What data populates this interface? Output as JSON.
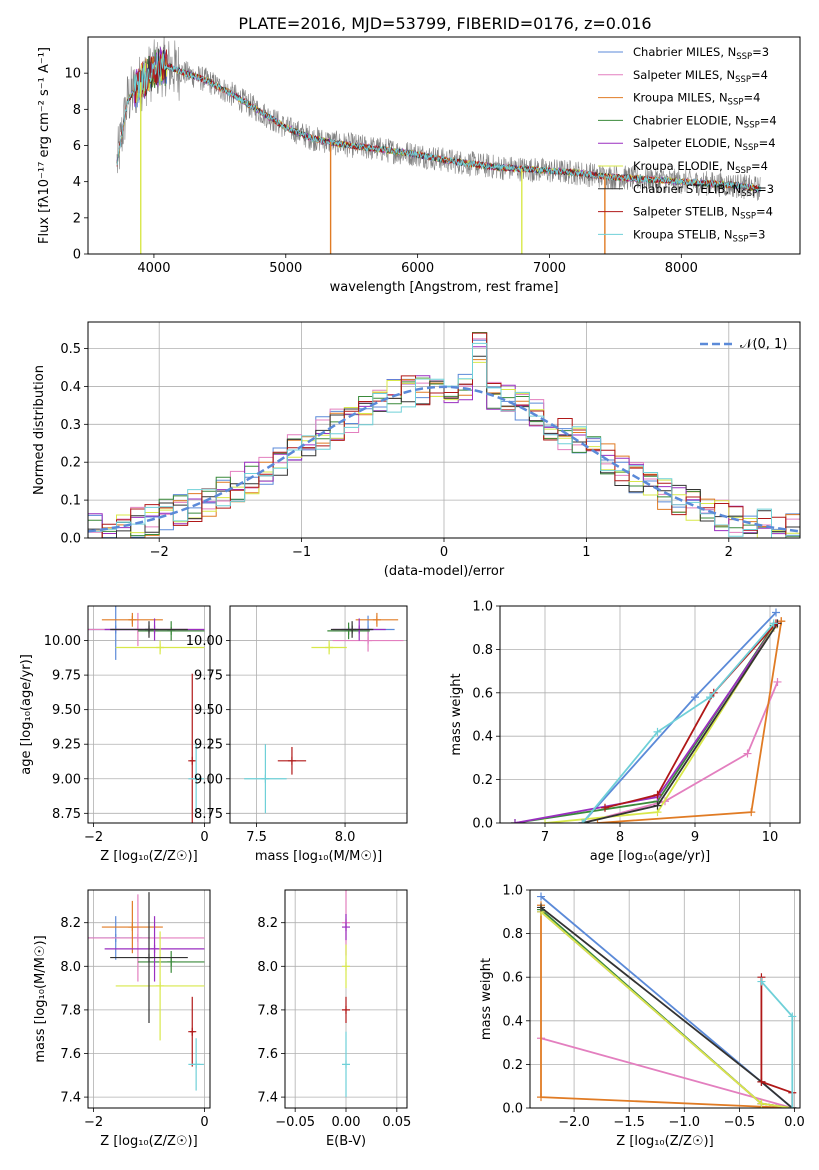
{
  "figure": {
    "title": "PLATE=2016, MJD=53799, FIBERID=0176, z=0.016"
  },
  "colors": {
    "Chabrier MILES": "#5b8ad8",
    "Salpeter MILES": "#e37fbf",
    "Kroupa MILES": "#e07b24",
    "Chabrier ELODIE": "#3a8a3a",
    "Salpeter ELODIE": "#9a2fc0",
    "Kroupa ELODIE": "#d8e84a",
    "Chabrier STELIB": "#333333",
    "Salpeter STELIB": "#b01818",
    "Kroupa STELIB": "#6fd0d8",
    "data": "#808080"
  },
  "chart_data": [
    {
      "id": "spectrum",
      "type": "line",
      "title": "PLATE=2016, MJD=53799, FIBERID=0176, z=0.016",
      "xlabel": "wavelength [Angstrom, rest frame]",
      "ylabel": "Flux [fλ10⁻¹⁷ erg cm⁻² s⁻¹ A⁻¹]",
      "xlim": [
        3500,
        8900
      ],
      "ylim": [
        0,
        12
      ],
      "xticks": [
        4000,
        5000,
        6000,
        7000,
        8000
      ],
      "yticks": [
        0,
        2,
        4,
        6,
        8,
        10
      ],
      "legend_position": "top-right",
      "legend": [
        {
          "name": "Chabrier MILES",
          "nssp": "3"
        },
        {
          "name": "Salpeter MILES",
          "nssp": "4"
        },
        {
          "name": "Kroupa MILES",
          "nssp": "4"
        },
        {
          "name": "Chabrier ELODIE",
          "nssp": "4"
        },
        {
          "name": "Salpeter ELODIE",
          "nssp": "4"
        },
        {
          "name": "Kroupa ELODIE",
          "nssp": "4"
        },
        {
          "name": "Chabrier STELIB",
          "nssp": "3"
        },
        {
          "name": "Salpeter STELIB",
          "nssp": "4"
        },
        {
          "name": "Kroupa STELIB",
          "nssp": "3"
        }
      ],
      "continuum": {
        "x": [
          3720,
          3800,
          3900,
          4000,
          4100,
          4200,
          4400,
          4600,
          4800,
          5000,
          5200,
          5400,
          5600,
          5800,
          6000,
          6200,
          6400,
          6600,
          6800,
          7000,
          7200,
          7400,
          7600,
          7800,
          8000,
          8200,
          8400,
          8600
        ],
        "y": [
          5.0,
          8.5,
          9.5,
          10.2,
          10.4,
          10.1,
          9.6,
          8.8,
          7.9,
          7.0,
          6.4,
          6.1,
          5.9,
          5.7,
          5.5,
          5.2,
          5.0,
          4.8,
          4.7,
          4.6,
          4.5,
          4.3,
          4.2,
          4.1,
          4.0,
          3.9,
          3.8,
          3.6
        ]
      },
      "data_noise_amplitude": 0.7,
      "artifact_drops": [
        {
          "x": 3900,
          "series": "Kroupa ELODIE"
        },
        {
          "x": 5340,
          "series": "Kroupa MILES"
        },
        {
          "x": 6790,
          "series": "Kroupa ELODIE"
        },
        {
          "x": 7420,
          "series": "Kroupa MILES"
        }
      ]
    },
    {
      "id": "residual-histogram",
      "type": "bar",
      "xlabel": "(data-model)/error",
      "ylabel": "Normed distribution",
      "xlim": [
        -2.5,
        2.5
      ],
      "ylim": [
        0,
        0.57
      ],
      "xticks": [
        -2,
        -1,
        0,
        1,
        2
      ],
      "yticks": [
        0.0,
        0.1,
        0.2,
        0.3,
        0.4,
        0.5
      ],
      "legend_position": "top-right",
      "reference_curve": {
        "name": "𝒩(0, 1)",
        "mean": 0,
        "sigma": 1
      },
      "bin_width": 0.1,
      "bin_range": [
        -2.5,
        2.5
      ],
      "histogram_variation": 0.045
    },
    {
      "id": "age-vs-Z",
      "type": "scatter",
      "xlabel": "Z [log₁₀(Z/Z☉)]",
      "ylabel": "age  [log₁₀(age/yr)]",
      "xlim": [
        -2.1,
        0.1
      ],
      "ylim": [
        8.68,
        10.25
      ],
      "xticks": [
        -2,
        0
      ],
      "yticks": [
        8.75,
        9.0,
        9.25,
        9.5,
        9.75,
        10.0
      ],
      "points": [
        {
          "series": "Chabrier MILES",
          "x": -1.6,
          "y": 10.08,
          "xerr": 0.6,
          "yerr": 0.22
        },
        {
          "series": "Salpeter MILES",
          "x": -1.2,
          "y": 10.08,
          "xerr": 1.2,
          "yerr": 0.12
        },
        {
          "series": "Kroupa MILES",
          "x": -1.3,
          "y": 10.15,
          "xerr": 0.55,
          "yerr": 0.05
        },
        {
          "series": "Chabrier ELODIE",
          "x": -0.6,
          "y": 10.07,
          "xerr": 0.6,
          "yerr": 0.07
        },
        {
          "series": "Salpeter ELODIE",
          "x": -0.9,
          "y": 10.08,
          "xerr": 0.9,
          "yerr": 0.08
        },
        {
          "series": "Kroupa ELODIE",
          "x": -0.8,
          "y": 9.95,
          "xerr": 0.8,
          "yerr": 0.05
        },
        {
          "series": "Chabrier STELIB",
          "x": -1.0,
          "y": 10.08,
          "xerr": 0.7,
          "yerr": 0.06
        },
        {
          "series": "Salpeter STELIB",
          "x": -0.22,
          "y": 9.13,
          "xerr": 0.04,
          "yerr": 0.63
        },
        {
          "series": "Kroupa STELIB",
          "x": -0.15,
          "y": 9.0,
          "xerr": 0.14,
          "yerr": 0.25
        }
      ]
    },
    {
      "id": "age-vs-mass",
      "type": "scatter",
      "xlabel": "mass [log₁₀(M/M☉)]",
      "ylabel": "",
      "xlim": [
        7.35,
        8.35
      ],
      "ylim": [
        8.68,
        10.25
      ],
      "xticks": [
        7.5,
        8.0
      ],
      "yticks": [
        8.75,
        9.0,
        9.25,
        9.5,
        9.75,
        10.0
      ],
      "points": [
        {
          "series": "Chabrier MILES",
          "x": 8.13,
          "y": 10.08,
          "xerr": 0.15,
          "yerr": 0.1
        },
        {
          "series": "Salpeter MILES",
          "x": 8.13,
          "y": 10.0,
          "xerr": 0.2,
          "yerr": 0.08
        },
        {
          "series": "Kroupa MILES",
          "x": 8.18,
          "y": 10.15,
          "xerr": 0.12,
          "yerr": 0.05
        },
        {
          "series": "Chabrier ELODIE",
          "x": 8.02,
          "y": 10.07,
          "xerr": 0.12,
          "yerr": 0.06
        },
        {
          "series": "Salpeter ELODIE",
          "x": 8.08,
          "y": 10.08,
          "xerr": 0.15,
          "yerr": 0.08
        },
        {
          "series": "Kroupa ELODIE",
          "x": 7.91,
          "y": 9.95,
          "xerr": 0.1,
          "yerr": 0.05
        },
        {
          "series": "Chabrier STELIB",
          "x": 8.04,
          "y": 10.08,
          "xerr": 0.12,
          "yerr": 0.06
        },
        {
          "series": "Salpeter STELIB",
          "x": 7.7,
          "y": 9.13,
          "xerr": 0.08,
          "yerr": 0.1
        },
        {
          "series": "Kroupa STELIB",
          "x": 7.55,
          "y": 9.0,
          "xerr": 0.12,
          "yerr": 0.25
        }
      ]
    },
    {
      "id": "mass-weight-vs-age",
      "type": "line",
      "xlabel": "age  [log₁₀(age/yr)]",
      "ylabel": "mass weight",
      "xlim": [
        6.4,
        10.4
      ],
      "ylim": [
        0,
        1.0
      ],
      "xticks": [
        7,
        8,
        9,
        10
      ],
      "yticks": [
        0.0,
        0.2,
        0.4,
        0.6,
        0.8,
        1.0
      ],
      "series": [
        {
          "name": "Chabrier MILES",
          "x": [
            7.5,
            9.0,
            10.08
          ],
          "y": [
            0.0,
            0.58,
            0.97
          ]
        },
        {
          "name": "Salpeter MILES",
          "x": [
            7.5,
            8.6,
            9.7,
            10.1
          ],
          "y": [
            0.0,
            0.1,
            0.32,
            0.65
          ]
        },
        {
          "name": "Kroupa MILES",
          "x": [
            7.7,
            9.75,
            10.15,
            10.15
          ],
          "y": [
            0.0,
            0.05,
            0.93,
            0.93
          ]
        },
        {
          "name": "Chabrier ELODIE",
          "x": [
            6.6,
            8.5,
            10.05
          ],
          "y": [
            0.0,
            0.1,
            0.91
          ]
        },
        {
          "name": "Salpeter ELODIE",
          "x": [
            6.6,
            8.5,
            10.05
          ],
          "y": [
            0.0,
            0.12,
            0.9
          ]
        },
        {
          "name": "Kroupa ELODIE",
          "x": [
            7.0,
            8.5,
            10.05
          ],
          "y": [
            0.0,
            0.05,
            0.9
          ]
        },
        {
          "name": "Chabrier STELIB",
          "x": [
            7.5,
            8.5,
            10.1
          ],
          "y": [
            0.0,
            0.08,
            0.92
          ]
        },
        {
          "name": "Salpeter STELIB",
          "x": [
            7.8,
            8.5,
            9.25,
            10.08
          ],
          "y": [
            0.07,
            0.13,
            0.6,
            0.92
          ]
        },
        {
          "name": "Kroupa STELIB",
          "x": [
            7.5,
            8.5,
            9.2,
            10.05
          ],
          "y": [
            0.0,
            0.42,
            0.58,
            0.92
          ]
        }
      ]
    },
    {
      "id": "mass-vs-Z",
      "type": "scatter",
      "xlabel": "Z [log₁₀(Z/Z☉)]",
      "ylabel": "mass [log₁₀(M/M☉)]",
      "xlim": [
        -2.1,
        0.1
      ],
      "ylim": [
        7.35,
        8.35
      ],
      "xticks": [
        -2,
        0
      ],
      "yticks": [
        7.4,
        7.6,
        7.8,
        8.0,
        8.2
      ],
      "points": [
        {
          "series": "Chabrier MILES",
          "x": -1.6,
          "y": 8.13,
          "xerr": 0.6,
          "yerr": 0.1
        },
        {
          "series": "Salpeter MILES",
          "x": -1.2,
          "y": 8.13,
          "xerr": 1.2,
          "yerr": 0.2
        },
        {
          "series": "Kroupa MILES",
          "x": -1.3,
          "y": 8.18,
          "xerr": 0.55,
          "yerr": 0.12
        },
        {
          "series": "Chabrier ELODIE",
          "x": -0.6,
          "y": 8.02,
          "xerr": 0.6,
          "yerr": 0.05
        },
        {
          "series": "Salpeter ELODIE",
          "x": -0.9,
          "y": 8.08,
          "xerr": 0.9,
          "yerr": 0.15
        },
        {
          "series": "Kroupa ELODIE",
          "x": -0.8,
          "y": 7.91,
          "xerr": 0.8,
          "yerr": 0.25
        },
        {
          "series": "Chabrier STELIB",
          "x": -1.0,
          "y": 8.04,
          "xerr": 0.7,
          "yerr": 0.3
        },
        {
          "series": "Salpeter STELIB",
          "x": -0.22,
          "y": 7.7,
          "xerr": 0.04,
          "yerr": 0.16
        },
        {
          "series": "Kroupa STELIB",
          "x": -0.15,
          "y": 7.55,
          "xerr": 0.14,
          "yerr": 0.12
        }
      ]
    },
    {
      "id": "mass-vs-ebv",
      "type": "scatter",
      "xlabel": "E(B-V)",
      "ylabel": "",
      "xlim": [
        -0.06,
        0.06
      ],
      "ylim": [
        7.35,
        8.35
      ],
      "xticks": [
        -0.05,
        0.0,
        0.05
      ],
      "xtick_labels": [
        "−0.05",
        "0.00",
        "0.05"
      ],
      "yticks": [
        7.4,
        7.6,
        7.8,
        8.0,
        8.2
      ],
      "points": [
        {
          "series": "Salpeter MILES",
          "x": 0.0,
          "y": 8.2,
          "xerr": 0.0,
          "yerr": 0.15
        },
        {
          "series": "Salpeter ELODIE",
          "x": 0.0,
          "y": 8.18,
          "xerr": 0.0,
          "yerr": 0.06
        },
        {
          "series": "Kroupa ELODIE",
          "x": 0.0,
          "y": 8.0,
          "xerr": 0.0,
          "yerr": 0.1
        },
        {
          "series": "Salpeter STELIB",
          "x": 0.0,
          "y": 7.8,
          "xerr": 0.0,
          "yerr": 0.06
        },
        {
          "series": "Kroupa STELIB",
          "x": 0.0,
          "y": 7.55,
          "xerr": 0.0,
          "yerr": 0.15
        }
      ]
    },
    {
      "id": "mass-weight-vs-Z",
      "type": "line",
      "xlabel": "Z [log₁₀(Z/Z☉)]",
      "ylabel": "mass weight",
      "xlim": [
        -2.4,
        0.05
      ],
      "ylim": [
        0,
        1.0
      ],
      "xticks": [
        -2.0,
        -1.5,
        -1.0,
        -0.5,
        0.0
      ],
      "yticks": [
        0.0,
        0.2,
        0.4,
        0.6,
        0.8,
        1.0
      ],
      "series": [
        {
          "name": "Chabrier MILES",
          "x": [
            -2.3,
            -0.02,
            -0.02
          ],
          "y": [
            0.97,
            0.0,
            0.0
          ]
        },
        {
          "name": "Salpeter MILES",
          "x": [
            -2.3,
            -0.02,
            -0.02
          ],
          "y": [
            0.32,
            0.0,
            0.0
          ]
        },
        {
          "name": "Kroupa MILES",
          "x": [
            -2.3,
            -2.3,
            -0.02
          ],
          "y": [
            0.93,
            0.05,
            0.0
          ]
        },
        {
          "name": "Chabrier ELODIE",
          "x": [
            -2.3,
            -0.3,
            -0.02
          ],
          "y": [
            0.91,
            0.02,
            0.0
          ]
        },
        {
          "name": "Salpeter ELODIE",
          "x": [
            -2.3,
            -0.3,
            -0.02
          ],
          "y": [
            0.9,
            0.02,
            0.0
          ]
        },
        {
          "name": "Kroupa ELODIE",
          "x": [
            -2.3,
            -0.3,
            -0.02
          ],
          "y": [
            0.9,
            0.02,
            0.0
          ]
        },
        {
          "name": "Chabrier STELIB",
          "x": [
            -2.3,
            -0.3,
            -0.02
          ],
          "y": [
            0.92,
            0.12,
            0.0
          ]
        },
        {
          "name": "Salpeter STELIB",
          "x": [
            -0.3,
            -0.3,
            -0.02,
            -0.02
          ],
          "y": [
            0.6,
            0.12,
            0.07,
            0.0
          ]
        },
        {
          "name": "Kroupa STELIB",
          "x": [
            -0.3,
            -0.02,
            -0.02,
            -0.02
          ],
          "y": [
            0.58,
            0.42,
            0.0,
            0.0
          ]
        }
      ]
    }
  ]
}
